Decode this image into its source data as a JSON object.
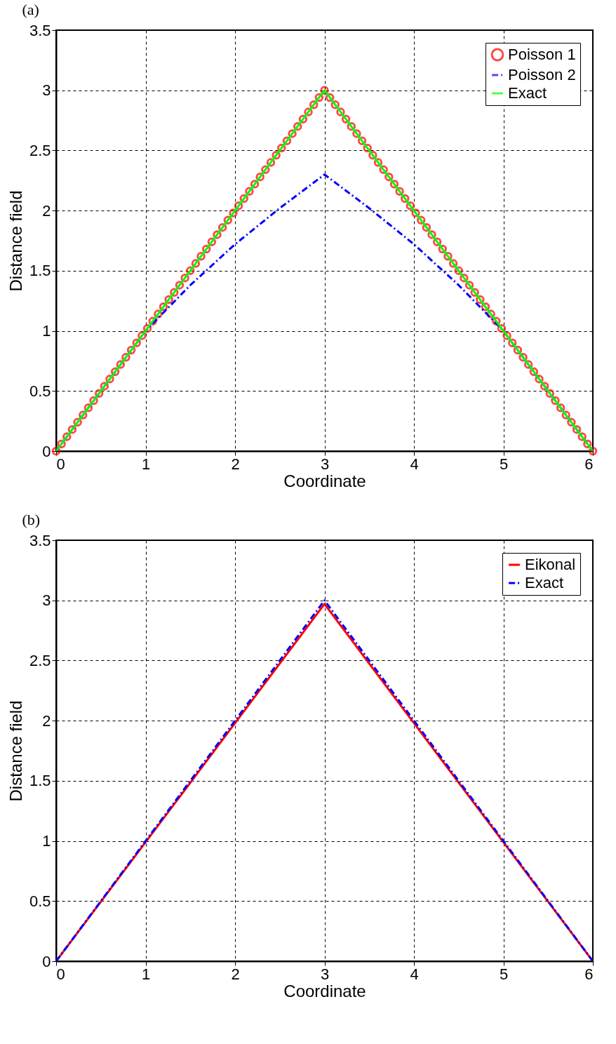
{
  "chart_data": [
    {
      "type": "line",
      "title": "(a)",
      "xlabel": "Coordinate",
      "ylabel": "Distance field",
      "xlim": [
        0,
        6
      ],
      "xticks": [
        0,
        1,
        2,
        3,
        4,
        5,
        6
      ],
      "ylim": [
        0,
        3.5
      ],
      "yticks": [
        0,
        0.5,
        1,
        1.5,
        2,
        2.5,
        3,
        3.5
      ],
      "grid": true,
      "legend": "top right",
      "series": [
        {
          "name": "Poisson 1",
          "type": "scatter",
          "marker": "circle",
          "color": "#ff0000",
          "x": [
            0,
            0.06,
            0.12,
            0.18,
            0.24,
            0.3,
            0.36,
            0.42,
            0.48,
            0.54,
            0.6,
            0.66,
            0.72,
            0.78,
            0.84,
            0.9,
            0.96,
            1.02,
            1.08,
            1.14,
            1.2,
            1.26,
            1.32,
            1.38,
            1.44,
            1.5,
            1.56,
            1.62,
            1.68,
            1.74,
            1.8,
            1.86,
            1.92,
            1.98,
            2.04,
            2.1,
            2.16,
            2.22,
            2.28,
            2.34,
            2.4,
            2.46,
            2.52,
            2.58,
            2.64,
            2.7,
            2.76,
            2.82,
            2.88,
            2.94,
            3,
            3.06,
            3.12,
            3.18,
            3.24,
            3.3,
            3.36,
            3.42,
            3.48,
            3.54,
            3.6,
            3.66,
            3.72,
            3.78,
            3.84,
            3.9,
            3.96,
            4.02,
            4.08,
            4.14,
            4.2,
            4.26,
            4.32,
            4.38,
            4.44,
            4.5,
            4.56,
            4.62,
            4.68,
            4.74,
            4.8,
            4.86,
            4.92,
            4.98,
            5.04,
            5.1,
            5.16,
            5.22,
            5.28,
            5.34,
            5.4,
            5.46,
            5.52,
            5.58,
            5.64,
            5.7,
            5.76,
            5.82,
            5.88,
            5.94,
            6
          ],
          "values": [
            0,
            0.06,
            0.12,
            0.18,
            0.24,
            0.3,
            0.36,
            0.42,
            0.48,
            0.54,
            0.6,
            0.66,
            0.72,
            0.78,
            0.84,
            0.9,
            0.96,
            1.02,
            1.08,
            1.14,
            1.2,
            1.26,
            1.32,
            1.38,
            1.44,
            1.5,
            1.56,
            1.62,
            1.68,
            1.74,
            1.8,
            1.86,
            1.92,
            1.98,
            2.04,
            2.1,
            2.16,
            2.22,
            2.28,
            2.34,
            2.4,
            2.46,
            2.52,
            2.58,
            2.64,
            2.7,
            2.76,
            2.82,
            2.88,
            2.94,
            3,
            2.94,
            2.88,
            2.82,
            2.76,
            2.7,
            2.64,
            2.58,
            2.52,
            2.46,
            2.4,
            2.34,
            2.28,
            2.22,
            2.16,
            2.1,
            2.04,
            1.98,
            1.92,
            1.86,
            1.8,
            1.74,
            1.68,
            1.62,
            1.56,
            1.5,
            1.44,
            1.38,
            1.32,
            1.26,
            1.2,
            1.14,
            1.08,
            1.02,
            0.96,
            0.9,
            0.84,
            0.78,
            0.72,
            0.66,
            0.6,
            0.54,
            0.48,
            0.42,
            0.36,
            0.3,
            0.24,
            0.18,
            0.12,
            0.06,
            0
          ]
        },
        {
          "name": "Poisson 2",
          "marker": "none",
          "line_style": "dashed",
          "color": "#0000ff",
          "x": [
            0,
            0.5,
            1,
            1.5,
            2,
            2.5,
            3,
            3.5,
            4,
            4.5,
            5,
            5.5,
            6
          ],
          "values": [
            0,
            0.5,
            1,
            1.38,
            1.72,
            2.02,
            2.3,
            2.02,
            1.72,
            1.38,
            1,
            0.5,
            0
          ]
        },
        {
          "name": "Exact",
          "marker": "none",
          "line_style": "solid",
          "color": "#00ff00",
          "x": [
            0,
            3,
            6
          ],
          "values": [
            0,
            3,
            0
          ]
        }
      ]
    },
    {
      "type": "line",
      "title": "(b)",
      "xlabel": "Coordinate",
      "ylabel": "Distance field",
      "xlim": [
        0,
        6
      ],
      "xticks": [
        0,
        1,
        2,
        3,
        4,
        5,
        6
      ],
      "ylim": [
        0,
        3.5
      ],
      "yticks": [
        0,
        0.5,
        1,
        1.5,
        2,
        2.5,
        3,
        3.5
      ],
      "grid": true,
      "legend": "top right",
      "series": [
        {
          "name": "Eikonal",
          "marker": "none",
          "line_style": "solid",
          "color": "#ff0000",
          "x": [
            0,
            3,
            6
          ],
          "values": [
            0,
            2.97,
            0
          ]
        },
        {
          "name": "Exact",
          "marker": "none",
          "line_style": "dashed",
          "color": "#0000ff",
          "x": [
            0,
            3,
            6
          ],
          "values": [
            0,
            3,
            0
          ]
        }
      ]
    }
  ]
}
